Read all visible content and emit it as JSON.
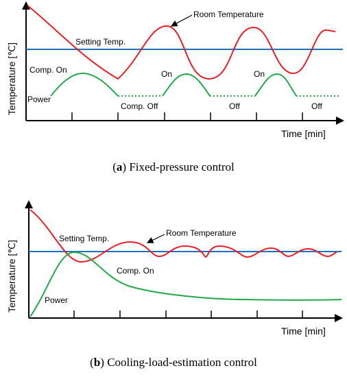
{
  "panel_a": {
    "ylabel": "Temperature [℃]",
    "xlabel": "Time [min]",
    "room_label": "Room Temperature",
    "setting_label": "Setting Temp.",
    "comp_on_label": "Comp. On",
    "on_label_1": "On",
    "on_label_2": "On",
    "power_label": "Power",
    "comp_off_label": "Comp. Off",
    "off_label_1": "Off",
    "off_label_2": "Off",
    "caption_letter": "a",
    "caption_text": " Fixed-pressure control"
  },
  "panel_b": {
    "ylabel": "Temperature [℃]",
    "xlabel": "Time [min]",
    "room_label": "Room Temperature",
    "setting_label": "Setting Temp.",
    "comp_on_label": "Comp. On",
    "power_label": "Power",
    "caption_letter": "b",
    "caption_text": " Cooling-load-estimation control"
  },
  "colors": {
    "room_temperature": "#ee1c25",
    "setting_temperature": "#1f6fbf",
    "power": "#21a84a",
    "axis": "#000000"
  }
}
